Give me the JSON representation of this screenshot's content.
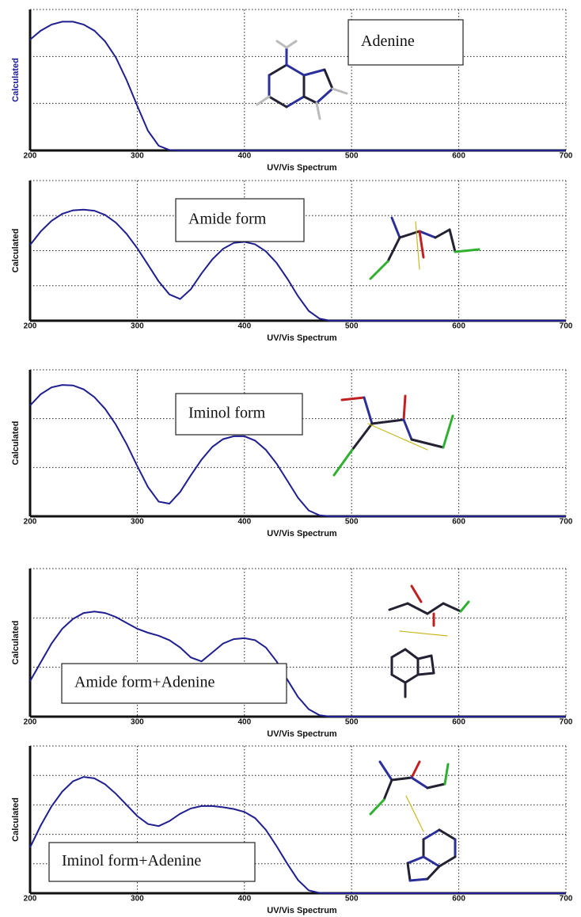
{
  "chart_data": [
    {
      "type": "line",
      "annotation": "Adenine",
      "xlabel": "UV/Vis Spectrum",
      "ylabel": "Calculated",
      "ylabel_color": "#1a1aa0",
      "x": [
        200,
        210,
        220,
        230,
        240,
        250,
        260,
        270,
        280,
        290,
        300,
        310,
        320,
        330,
        340,
        350,
        360,
        370,
        380,
        390,
        400,
        410,
        420,
        430,
        440,
        450,
        460,
        470,
        480,
        500,
        600,
        700
      ],
      "values": [
        2.36,
        2.55,
        2.68,
        2.74,
        2.74,
        2.68,
        2.55,
        2.32,
        1.98,
        1.5,
        0.95,
        0.42,
        0.1,
        0.01,
        0,
        0,
        0,
        0,
        0,
        0,
        0,
        0,
        0,
        0,
        0,
        0,
        0,
        0,
        0,
        0,
        0,
        0
      ],
      "color": "#1f1f8f",
      "xlim": [
        200,
        700
      ],
      "xticks": [
        200,
        300,
        400,
        500,
        600,
        700
      ],
      "ylim": [
        0,
        3
      ],
      "yticks": [
        0,
        1,
        2,
        3
      ],
      "grid": true
    },
    {
      "type": "line",
      "annotation": "Amide form",
      "xlabel": "UV/Vis Spectrum",
      "ylabel": "Calculated",
      "ylabel_color": "#111111",
      "x": [
        200,
        210,
        220,
        230,
        240,
        250,
        260,
        270,
        280,
        290,
        300,
        310,
        320,
        330,
        340,
        350,
        360,
        370,
        380,
        390,
        400,
        410,
        420,
        430,
        440,
        450,
        460,
        470,
        480,
        500,
        600,
        700
      ],
      "values": [
        2.16,
        2.55,
        2.85,
        3.05,
        3.15,
        3.17,
        3.14,
        3.02,
        2.8,
        2.48,
        2.07,
        1.6,
        1.12,
        0.75,
        0.62,
        0.9,
        1.35,
        1.75,
        2.05,
        2.22,
        2.25,
        2.18,
        1.98,
        1.65,
        1.2,
        0.7,
        0.28,
        0.06,
        0,
        0,
        0,
        0
      ],
      "color": "#1f1f8f",
      "xlim": [
        200,
        700
      ],
      "xticks": [
        200,
        300,
        400,
        500,
        600,
        700
      ],
      "ylim": [
        0,
        4
      ],
      "yticks": [
        0,
        1,
        2,
        3,
        4
      ],
      "grid": true
    },
    {
      "type": "line",
      "annotation": "Iminol form",
      "xlabel": "UV/Vis Spectrum",
      "ylabel": "Calculated",
      "ylabel_color": "#111111",
      "x": [
        200,
        210,
        220,
        230,
        240,
        250,
        260,
        270,
        280,
        290,
        300,
        310,
        320,
        330,
        340,
        350,
        360,
        370,
        380,
        390,
        400,
        410,
        420,
        430,
        440,
        450,
        460,
        470,
        480,
        500,
        600,
        700
      ],
      "values": [
        2.27,
        2.5,
        2.64,
        2.69,
        2.68,
        2.6,
        2.44,
        2.2,
        1.88,
        1.48,
        1.03,
        0.6,
        0.3,
        0.26,
        0.5,
        0.84,
        1.16,
        1.42,
        1.58,
        1.64,
        1.64,
        1.55,
        1.36,
        1.08,
        0.73,
        0.38,
        0.12,
        0.02,
        0,
        0,
        0,
        0
      ],
      "color": "#1f1f8f",
      "xlim": [
        200,
        700
      ],
      "xticks": [
        200,
        300,
        400,
        500,
        600,
        700
      ],
      "ylim": [
        0,
        3
      ],
      "yticks": [
        0,
        1,
        2,
        3
      ],
      "grid": true
    },
    {
      "type": "line",
      "annotation": "Amide form+Adenine",
      "xlabel": "UV/Vis Spectrum",
      "ylabel": "Calculated",
      "ylabel_color": "#111111",
      "x": [
        200,
        210,
        220,
        230,
        240,
        250,
        260,
        270,
        280,
        290,
        300,
        310,
        320,
        330,
        340,
        350,
        360,
        370,
        380,
        390,
        400,
        410,
        420,
        430,
        440,
        450,
        460,
        470,
        480,
        500,
        600,
        700
      ],
      "values": [
        0.72,
        1.1,
        1.48,
        1.78,
        1.98,
        2.1,
        2.13,
        2.1,
        2.02,
        1.9,
        1.78,
        1.7,
        1.64,
        1.55,
        1.4,
        1.2,
        1.12,
        1.3,
        1.48,
        1.57,
        1.59,
        1.55,
        1.4,
        1.12,
        0.75,
        0.4,
        0.15,
        0.03,
        0,
        0,
        0,
        0
      ],
      "color": "#1f1f8f",
      "xlim": [
        200,
        700
      ],
      "xticks": [
        200,
        300,
        400,
        500,
        600,
        700
      ],
      "ylim": [
        0,
        3
      ],
      "yticks": [
        0,
        1,
        2,
        3
      ],
      "grid": true
    },
    {
      "type": "line",
      "annotation": "Iminol form+Adenine",
      "xlabel": "UV/Vis Spectrum",
      "ylabel": "Calculated",
      "ylabel_color": "#111111",
      "x": [
        200,
        210,
        220,
        230,
        240,
        250,
        260,
        270,
        280,
        290,
        300,
        310,
        320,
        330,
        340,
        350,
        360,
        370,
        380,
        390,
        400,
        410,
        420,
        430,
        440,
        450,
        460,
        470,
        480,
        500,
        600,
        700
      ],
      "values": [
        1.56,
        2.3,
        2.95,
        3.45,
        3.8,
        3.95,
        3.9,
        3.7,
        3.38,
        3.0,
        2.62,
        2.35,
        2.28,
        2.45,
        2.7,
        2.88,
        2.96,
        2.96,
        2.92,
        2.86,
        2.76,
        2.55,
        2.15,
        1.6,
        1.0,
        0.45,
        0.1,
        0.01,
        0,
        0,
        0,
        0
      ],
      "color": "#1f1f8f",
      "xlim": [
        200,
        700
      ],
      "xticks": [
        200,
        300,
        400,
        500,
        600,
        700
      ],
      "ylim": [
        0,
        5
      ],
      "yticks": [
        0,
        1,
        2,
        3,
        4,
        5
      ],
      "grid": true
    }
  ]
}
